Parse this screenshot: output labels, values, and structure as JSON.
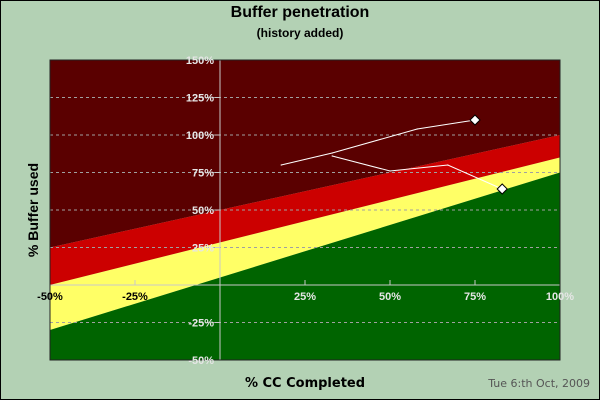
{
  "chart_data": {
    "type": "line",
    "title": "Buffer penetration",
    "subtitle": "(history added)",
    "xlabel": "% CC Completed",
    "ylabel": "% Buffer used",
    "footer": "Tue 6:th Oct, 2009",
    "xlim": [
      -50,
      100
    ],
    "ylim": [
      -50,
      150
    ],
    "x_ticks": [
      -50,
      -25,
      25,
      50,
      75,
      100
    ],
    "x_tick_labels": [
      "-50%",
      "-25%",
      "25%",
      "50%",
      "75%",
      "100%"
    ],
    "y_ticks": [
      150,
      125,
      100,
      75,
      50,
      25,
      -25,
      -50
    ],
    "y_tick_labels": [
      "150%",
      "125%",
      "100%",
      "75%",
      "50%",
      "25%",
      "-25%",
      "-50%"
    ],
    "grid": "horizontal dashed",
    "zones": [
      {
        "color": "#5a0000",
        "from_line": [
          [
            -50,
            150
          ],
          [
            100,
            150
          ]
        ],
        "to_line": [
          [
            -50,
            25
          ],
          [
            100,
            100
          ]
        ]
      },
      {
        "color": "#cc0000",
        "from_line": [
          [
            -50,
            25
          ],
          [
            100,
            100
          ]
        ],
        "to_line": [
          [
            -50,
            0
          ],
          [
            100,
            85
          ]
        ]
      },
      {
        "color": "#ffff66",
        "from_line": [
          [
            -50,
            0
          ],
          [
            100,
            85
          ]
        ],
        "to_line": [
          [
            -50,
            -30
          ],
          [
            100,
            75
          ]
        ]
      },
      {
        "color": "#006400",
        "from_line": [
          [
            -50,
            -30
          ],
          [
            100,
            75
          ]
        ],
        "to_line": [
          [
            -50,
            -50
          ],
          [
            100,
            -50
          ]
        ]
      }
    ],
    "series": [
      {
        "points": [
          [
            18,
            80
          ],
          [
            33,
            88
          ],
          [
            58,
            104
          ],
          [
            75,
            110
          ]
        ],
        "color": "#ffffff",
        "marker": "diamond-at-end"
      },
      {
        "points": [
          [
            33,
            86
          ],
          [
            50,
            76
          ],
          [
            67,
            80
          ],
          [
            83,
            64
          ]
        ],
        "color": "#ffffff",
        "marker": "diamond-at-end"
      }
    ]
  }
}
